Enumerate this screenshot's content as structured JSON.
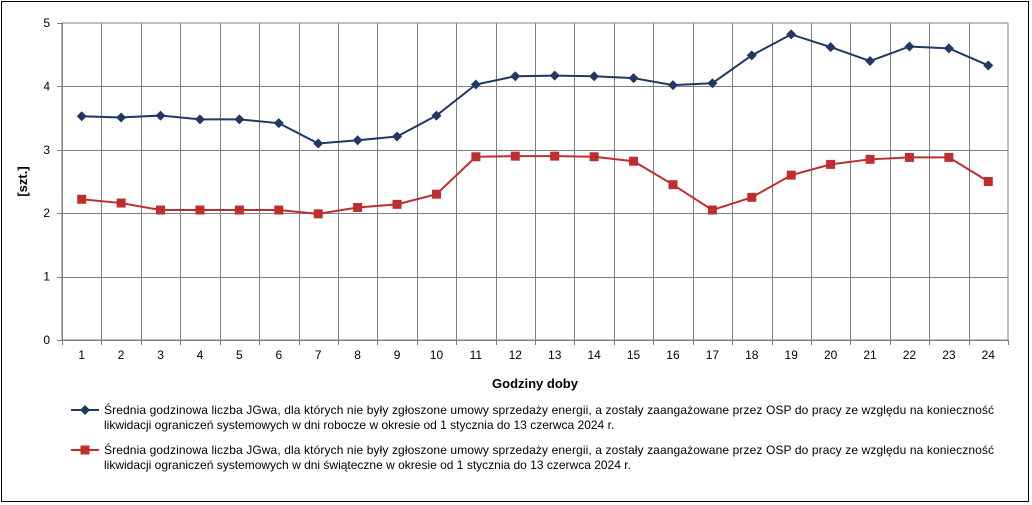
{
  "chart_data": {
    "type": "line",
    "xlabel": "Godziny doby",
    "ylabel": "[szt.]",
    "ylim": [
      0,
      5
    ],
    "yticks": [
      "0",
      "1",
      "2",
      "3",
      "4",
      "5"
    ],
    "categories": [
      "1",
      "2",
      "3",
      "4",
      "5",
      "6",
      "7",
      "8",
      "9",
      "10",
      "11",
      "12",
      "13",
      "14",
      "15",
      "16",
      "17",
      "18",
      "19",
      "20",
      "21",
      "22",
      "23",
      "24"
    ],
    "grid": true,
    "legend_position": "bottom",
    "series": [
      {
        "name_lines": [
          "Średnia godzinowa liczba JGwa, dla których nie były zgłoszone umowy sprzedaży energii, a zostały zaangażowane przez OSP do pracy ze względu na konieczność",
          "likwidacji ograniczeń systemowych w dni robocze w okresie od 1 stycznia do 13 czerwca 2024 r."
        ],
        "color": "#1f3864",
        "marker": "diamond",
        "values": [
          3.53,
          3.51,
          3.54,
          3.48,
          3.48,
          3.42,
          3.1,
          3.15,
          3.21,
          3.54,
          4.03,
          4.16,
          4.17,
          4.16,
          4.13,
          4.02,
          4.05,
          4.49,
          4.82,
          4.62,
          4.4,
          4.63,
          4.6,
          4.33
        ]
      },
      {
        "name_lines": [
          "Średnia godzinowa liczba JGwa, dla których nie były zgłoszone umowy sprzedaży energii, a zostały zaangażowane przez OSP do pracy ze względu na konieczność",
          "likwidacji ograniczeń systemowych w dni świąteczne w okresie od 1 stycznia do 13 czerwca 2024 r."
        ],
        "color": "#be2e2e",
        "marker": "square",
        "values": [
          2.22,
          2.16,
          2.05,
          2.05,
          2.05,
          2.05,
          1.99,
          2.09,
          2.14,
          2.3,
          2.89,
          2.9,
          2.9,
          2.89,
          2.82,
          2.45,
          2.05,
          2.25,
          2.6,
          2.77,
          2.85,
          2.88,
          2.88,
          2.5
        ]
      }
    ]
  }
}
